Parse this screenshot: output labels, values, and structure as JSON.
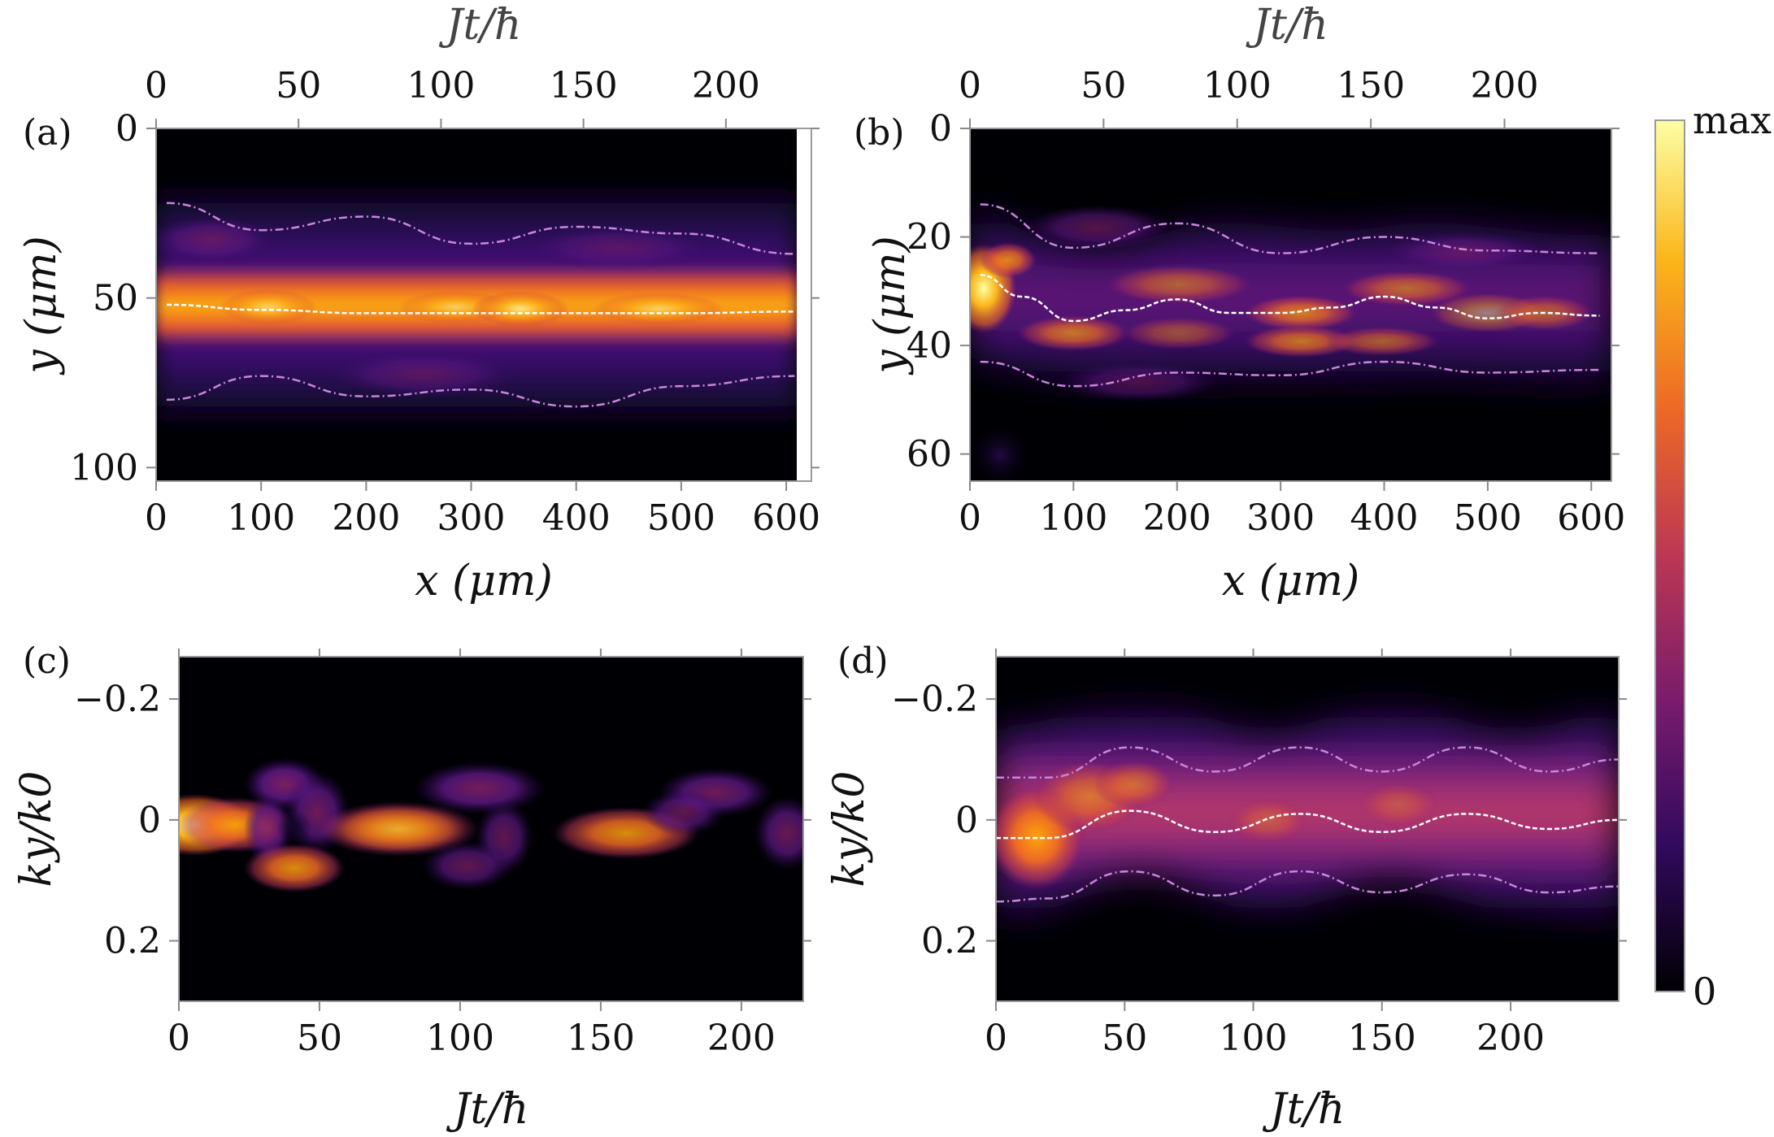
{
  "colors": {
    "background": "#ffffff",
    "inferno_stops": [
      "#000004",
      "#320a5e",
      "#781b6c",
      "#bc3754",
      "#ed6925",
      "#fbb61a",
      "#fcffa4"
    ],
    "center_line": "#ffffff",
    "band_line": "#c886dc"
  },
  "chart_data": [
    {
      "panel": "(a)",
      "type": "heatmap",
      "xlabel": "x (μm)",
      "ylabel": "y (μm)",
      "top_label": "Jt/ħ",
      "xlim": [
        0,
        610
      ],
      "ylim": [
        0,
        104
      ],
      "top_lim": [
        0,
        230
      ],
      "x_ticks": [
        0,
        100,
        200,
        300,
        400,
        500,
        600
      ],
      "x_tick_labels": [
        "0",
        "100",
        "200",
        "300",
        "400",
        "500",
        "600"
      ],
      "y_ticks": [
        0,
        50,
        100
      ],
      "y_tick_labels": [
        "0",
        "50",
        "100"
      ],
      "top_ticks": [
        0,
        50,
        100,
        150,
        200
      ],
      "top_tick_labels": [
        "0",
        "50",
        "100",
        "150",
        "200"
      ],
      "center_line": {
        "x": [
          10,
          100,
          200,
          300,
          400,
          500,
          608
        ],
        "y": [
          52,
          53.5,
          54.5,
          54.5,
          54.5,
          54.5,
          54
        ]
      },
      "upper_band": {
        "x": [
          10,
          100,
          200,
          300,
          400,
          500,
          608
        ],
        "y": [
          22,
          30,
          26,
          34,
          29,
          31,
          37
        ]
      },
      "lower_band": {
        "x": [
          10,
          100,
          200,
          300,
          400,
          500,
          608
        ],
        "y": [
          80,
          73,
          79,
          77,
          82,
          76,
          73
        ]
      }
    },
    {
      "panel": "(b)",
      "type": "heatmap",
      "xlabel": "x (μm)",
      "ylabel": "y (μm)",
      "top_label": "Jt/ħ",
      "xlim": [
        0,
        610
      ],
      "ylim": [
        0,
        65
      ],
      "top_lim": [
        0,
        240
      ],
      "x_ticks": [
        0,
        100,
        200,
        300,
        400,
        500,
        600
      ],
      "x_tick_labels": [
        "0",
        "100",
        "200",
        "300",
        "400",
        "500",
        "600"
      ],
      "y_ticks": [
        0,
        20,
        40,
        60
      ],
      "y_tick_labels": [
        "0",
        "20",
        "40",
        "60"
      ],
      "top_ticks": [
        0,
        50,
        100,
        150,
        200
      ],
      "top_tick_labels": [
        "0",
        "50",
        "100",
        "150",
        "200"
      ],
      "center_line": {
        "x": [
          10,
          50,
          100,
          150,
          200,
          250,
          300,
          350,
          400,
          450,
          500,
          550,
          608
        ],
        "y": [
          27,
          31,
          35.5,
          33.5,
          31.5,
          34,
          34,
          33,
          31,
          33,
          35,
          34,
          34.5
        ]
      },
      "upper_band": {
        "x": [
          10,
          100,
          200,
          300,
          400,
          500,
          608
        ],
        "y": [
          14,
          22,
          17.5,
          23,
          20,
          22.5,
          23
        ]
      },
      "lower_band": {
        "x": [
          10,
          100,
          200,
          300,
          400,
          500,
          608
        ],
        "y": [
          43,
          47.5,
          45,
          45.5,
          43,
          45,
          44.5
        ]
      }
    },
    {
      "panel": "(c)",
      "type": "heatmap",
      "xlabel": "Jt/ħ",
      "ylabel": "ky/k0",
      "xlim": [
        0,
        222
      ],
      "ylim": [
        -0.27,
        0.3
      ],
      "x_ticks": [
        0,
        50,
        100,
        150,
        200
      ],
      "x_tick_labels": [
        "0",
        "50",
        "100",
        "150",
        "200"
      ],
      "y_ticks": [
        -0.2,
        0,
        0.2
      ],
      "y_tick_labels": [
        "−0.2",
        "0",
        "0.2"
      ]
    },
    {
      "panel": "(d)",
      "type": "heatmap",
      "xlabel": "Jt/ħ",
      "ylabel": "ky/k0",
      "xlim": [
        0,
        242
      ],
      "ylim": [
        -0.27,
        0.3
      ],
      "x_ticks": [
        0,
        50,
        100,
        150,
        200
      ],
      "x_tick_labels": [
        "0",
        "50",
        "100",
        "150",
        "200"
      ],
      "y_ticks": [
        -0.2,
        0,
        0.2
      ],
      "y_tick_labels": [
        "−0.2",
        "0",
        "0.2"
      ],
      "center_line": {
        "x": [
          0,
          20,
          52,
          85,
          118,
          150,
          183,
          215,
          242
        ],
        "y": [
          0.03,
          0.03,
          -0.015,
          0.02,
          -0.01,
          0.02,
          -0.01,
          0.015,
          0.0
        ]
      },
      "upper_band": {
        "x": [
          0,
          20,
          52,
          85,
          118,
          150,
          183,
          215,
          242
        ],
        "y": [
          -0.07,
          -0.07,
          -0.12,
          -0.08,
          -0.12,
          -0.08,
          -0.12,
          -0.08,
          -0.1
        ]
      },
      "lower_band": {
        "x": [
          0,
          20,
          52,
          85,
          118,
          150,
          183,
          215,
          242
        ],
        "y": [
          0.135,
          0.13,
          0.085,
          0.125,
          0.085,
          0.12,
          0.09,
          0.12,
          0.11
        ]
      }
    },
    {
      "panel": "colorbar",
      "type": "colorbar",
      "max_label": "max",
      "min_label": "0"
    }
  ]
}
